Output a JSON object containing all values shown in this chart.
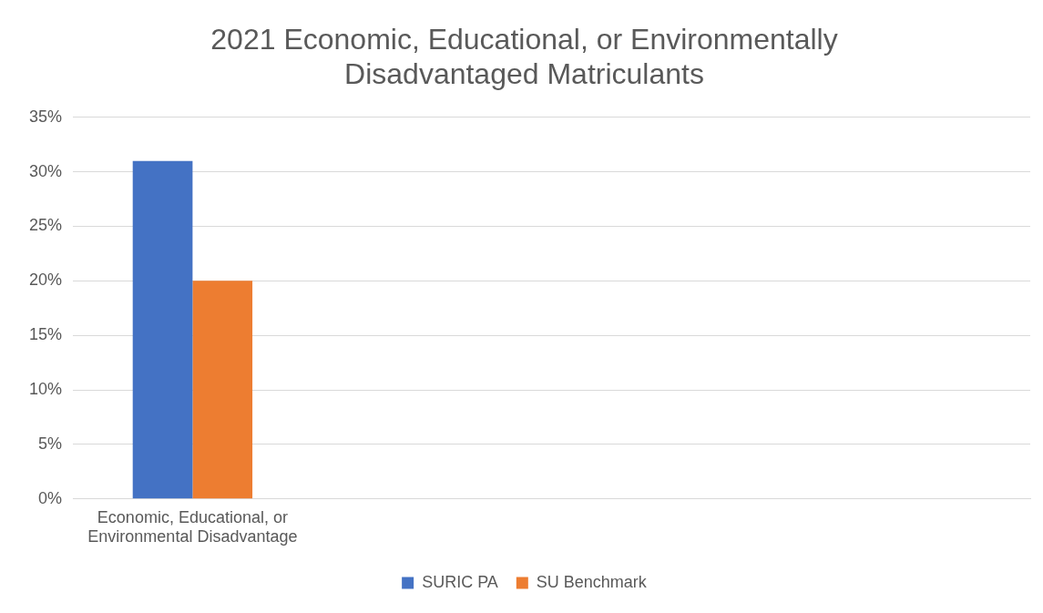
{
  "chart_data": {
    "type": "bar",
    "title": "2021 Economic, Educational, or Environmentally Disadvantaged Matriculants",
    "categories": [
      "Economic, Educational, or Environmental Disadvantage",
      null,
      null,
      null
    ],
    "series": [
      {
        "name": "SURIC PA",
        "color": "#4472c4",
        "values": [
          31,
          null,
          null,
          null
        ]
      },
      {
        "name": "SU Benchmark",
        "color": "#ed7d31",
        "values": [
          20,
          null,
          null,
          null
        ]
      }
    ],
    "ylim": [
      0,
      35
    ],
    "yticks": [
      {
        "value": 0,
        "label": "0%"
      },
      {
        "value": 5,
        "label": "5%"
      },
      {
        "value": 10,
        "label": "10%"
      },
      {
        "value": 15,
        "label": "15%"
      },
      {
        "value": 20,
        "label": "20%"
      },
      {
        "value": 25,
        "label": "25%"
      },
      {
        "value": 30,
        "label": "30%"
      },
      {
        "value": 35,
        "label": "35%"
      }
    ],
    "grid": "y",
    "legend": "bottom"
  }
}
